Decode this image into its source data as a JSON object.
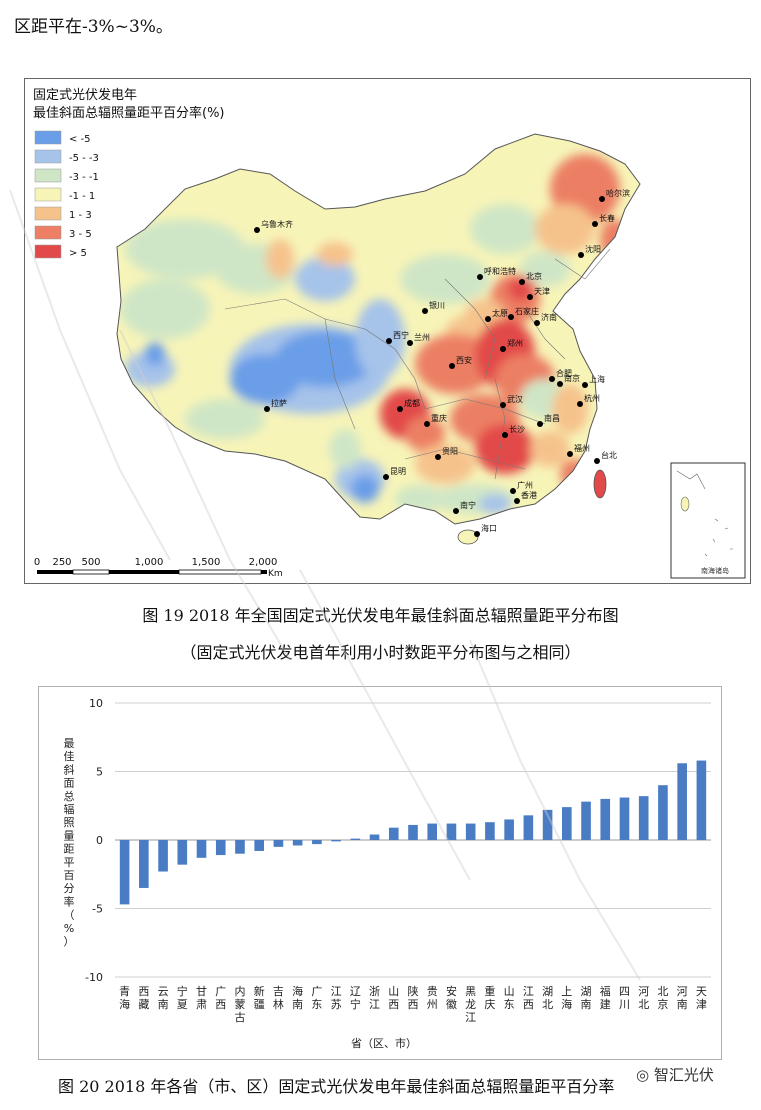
{
  "top_text": "区距平在-3%~3%。",
  "map": {
    "title_line1": "固定式光伏发电年",
    "title_line2": "最佳斜面总辐照量距平百分率(%)",
    "legend": [
      {
        "label": "< -5",
        "color": "#6b9ee8"
      },
      {
        "label": "-5 - -3",
        "color": "#a6c3ea"
      },
      {
        "label": "-3 - -1",
        "color": "#cfe6c6"
      },
      {
        "label": "-1 - 1",
        "color": "#f7f4b8"
      },
      {
        "label": "1 - 3",
        "color": "#f6c28c"
      },
      {
        "label": "3 - 5",
        "color": "#ec7f64"
      },
      {
        "label": "> 5",
        "color": "#e24a4a"
      }
    ],
    "cities": [
      {
        "name": "乌鲁木齐"
      },
      {
        "name": "哈尔滨"
      },
      {
        "name": "长春"
      },
      {
        "name": "沈阳"
      },
      {
        "name": "呼和浩特"
      },
      {
        "name": "北京"
      },
      {
        "name": "天津"
      },
      {
        "name": "石家庄"
      },
      {
        "name": "太原"
      },
      {
        "name": "济南"
      },
      {
        "name": "银川"
      },
      {
        "name": "西宁"
      },
      {
        "name": "兰州"
      },
      {
        "name": "西安"
      },
      {
        "name": "郑州"
      },
      {
        "name": "合肥"
      },
      {
        "name": "南京"
      },
      {
        "name": "上海"
      },
      {
        "name": "杭州"
      },
      {
        "name": "武汉"
      },
      {
        "name": "成都"
      },
      {
        "name": "重庆"
      },
      {
        "name": "长沙"
      },
      {
        "name": "南昌"
      },
      {
        "name": "福州"
      },
      {
        "name": "台北"
      },
      {
        "name": "拉萨"
      },
      {
        "name": "贵阳"
      },
      {
        "name": "昆明"
      },
      {
        "name": "南宁"
      },
      {
        "name": "广州"
      },
      {
        "name": "香港"
      },
      {
        "name": "海口"
      }
    ],
    "scale_ticks": [
      "0",
      "250",
      "500",
      "1,000",
      "1,500",
      "2,000"
    ],
    "scale_unit": "Km",
    "inset_label": "南海诸岛"
  },
  "caption1": "图 19    2018 年全国固定式光伏发电年最佳斜面总辐照量距平分布图",
  "caption2": "（固定式光伏发电首年利用小时数距平分布图与之相同）",
  "chart_data": {
    "type": "bar",
    "categories": [
      "青海",
      "西藏",
      "云南",
      "宁夏",
      "甘肃",
      "广西",
      "内蒙古",
      "新疆",
      "吉林",
      "海南",
      "广东",
      "江苏",
      "辽宁",
      "浙江",
      "山西",
      "陕西",
      "贵州",
      "安徽",
      "黑龙江",
      "重庆",
      "山东",
      "江西",
      "湖北",
      "上海",
      "湖南",
      "福建",
      "四川",
      "河北",
      "北京",
      "河南",
      "天津"
    ],
    "values": [
      -4.7,
      -3.5,
      -2.3,
      -1.8,
      -1.3,
      -1.1,
      -1.0,
      -0.8,
      -0.5,
      -0.4,
      -0.3,
      -0.1,
      0.1,
      0.4,
      0.9,
      1.1,
      1.2,
      1.2,
      1.2,
      1.3,
      1.5,
      1.8,
      2.2,
      2.4,
      2.8,
      3.0,
      3.1,
      3.2,
      4.0,
      5.6,
      5.8
    ],
    "ylim": [
      -10,
      10
    ],
    "yticks": [
      "10",
      "5",
      "0",
      "-5",
      "-10"
    ],
    "ylabel": "最佳斜面总辐照量距平百分率（%）",
    "xlabel": "省（区、市）",
    "bar_color": "#4a7cc4",
    "grid": true
  },
  "caption3": "图 20    2018 年各省（市、区）固定式光伏发电年最佳斜面总辐照量距平百分率",
  "logo_text": "智汇光伏"
}
